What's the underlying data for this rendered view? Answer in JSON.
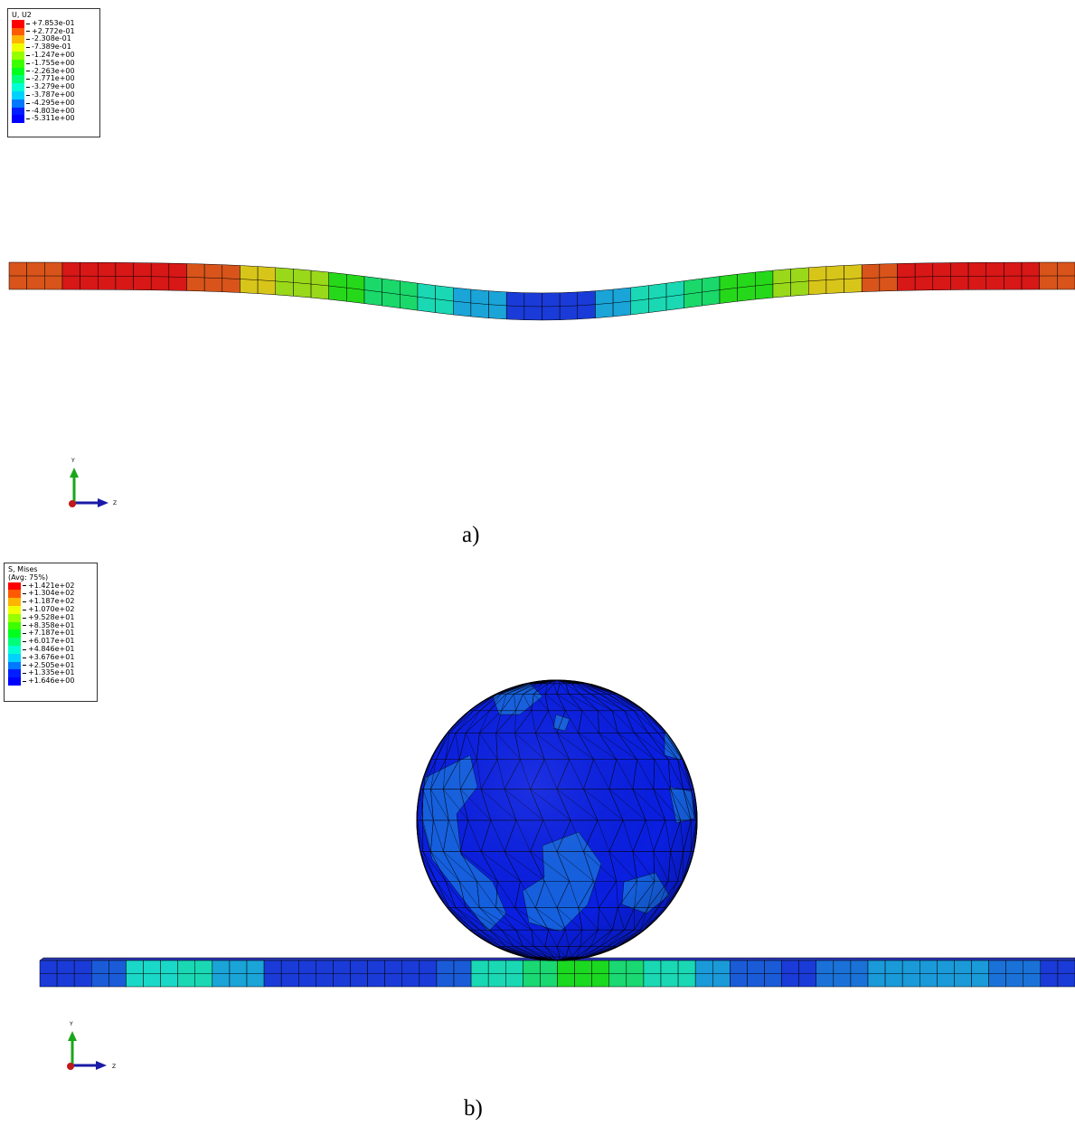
{
  "panel_a": {
    "legend_title": "U, U2",
    "legend_values": [
      "+7.853e-01",
      "+2.772e-01",
      "-2.308e-01",
      "-7.389e-01",
      "-1.247e+00",
      "-1.755e+00",
      "-2.263e+00",
      "-2.771e+00",
      "-3.279e+00",
      "-3.787e+00",
      "-4.295e+00",
      "-4.803e+00",
      "-5.311e+00"
    ],
    "triad": {
      "y_label": "Y",
      "z_label": "Z"
    },
    "caption": "a)"
  },
  "panel_b": {
    "legend_title_line1": "S, Mises",
    "legend_title_line2": "(Avg: 75%)",
    "legend_values": [
      "+1.421e+02",
      "+1.304e+02",
      "+1.187e+02",
      "+1.070e+02",
      "+9.528e+01",
      "+8.358e+01",
      "+7.187e+01",
      "+6.017e+01",
      "+4.846e+01",
      "+3.676e+01",
      "+2.505e+01",
      "+1.335e+01",
      "+1.646e+00"
    ],
    "triad": {
      "y_label": "Y",
      "z_label": "Z"
    },
    "caption": "b)"
  },
  "contour_colors": [
    "#ff0000",
    "#ff5a00",
    "#ffb400",
    "#f0ff00",
    "#96ff00",
    "#3cff00",
    "#00ff1e",
    "#00ff78",
    "#00ffd2",
    "#00d2ff",
    "#0078ff",
    "#001eff",
    "#0000ff"
  ],
  "shaded_colors": {
    "plate_a": [
      "#d8541a",
      "#d81717",
      "#d81717",
      "#d81717",
      "#d8541a",
      "#d8c51a",
      "#9ad81a",
      "#26d81a",
      "#1ad86a",
      "#1ad8b4",
      "#1aa4d8",
      "#1a3bd8",
      "#1a3bd8",
      "#1aa4d8",
      "#1ad8b4",
      "#1ad86a",
      "#26d81a",
      "#9ad81a",
      "#d8c51a",
      "#d8541a",
      "#d81717",
      "#d81717",
      "#d81717",
      "#d8541a"
    ],
    "plate_b": [
      "#1a3bd8",
      "#1a5bd8",
      "#1ad8c7",
      "#1ad8b4",
      "#1aa4d8",
      "#1a3bd8",
      "#1a3bd8",
      "#1a3bd8",
      "#1a3bd8",
      "#1a5bd8",
      "#1ad8b4",
      "#1ad872",
      "#1bd820",
      "#1ad872",
      "#1ad8b4",
      "#1a9ad8",
      "#1a5bd8",
      "#1a3bd8",
      "#1a72d8",
      "#1a9ad8",
      "#1a9ad8",
      "#1a9ad8",
      "#1a72d8",
      "#1a3bd8"
    ],
    "sphere_base": "#0a1fe0",
    "sphere_patch": "#1560e0"
  }
}
